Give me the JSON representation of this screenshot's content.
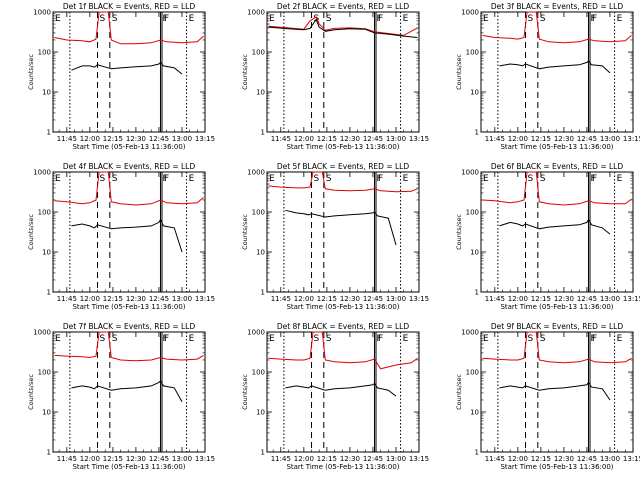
{
  "figure": {
    "type": "line",
    "y_scale": "log",
    "ylim": [
      1,
      1000
    ],
    "xlim": [
      "11:36",
      "13:15"
    ],
    "x_tick_labels": [
      "11:45",
      "12:00",
      "12:15",
      "12:30",
      "12:45",
      "13:00",
      "13:15"
    ],
    "y_tick_labels": [
      "1",
      "10",
      "100",
      "1000"
    ],
    "ylabel": "Counts/sec",
    "xlabel": "Start Time (05-Feb-13 11:36:00)",
    "colors": {
      "events": "#000000",
      "lld": "#e00000",
      "axes": "#000000"
    },
    "markers": {
      "E": {
        "label": "E",
        "style": "dotted",
        "times": [
          "11:47",
          "13:03"
        ]
      },
      "S": {
        "label": "S",
        "style": "dashed",
        "times": [
          "12:05",
          "12:13"
        ]
      },
      "F": {
        "label": "F",
        "style": "solid",
        "times": [
          "12:46",
          "12:47"
        ]
      }
    }
  },
  "chart_data": [
    {
      "title": "Det 1f BLACK = Events, RED = LLD",
      "type": "line",
      "series": [
        {
          "name": "Events",
          "color": "#000000",
          "x": [
            "11:48",
            "11:55",
            "12:00",
            "12:03",
            "12:05",
            "12:14",
            "12:20",
            "12:30",
            "12:40",
            "12:45",
            "12:46",
            "12:48",
            "12:55",
            "13:00"
          ],
          "values": [
            35,
            45,
            45,
            42,
            48,
            38,
            40,
            43,
            45,
            50,
            55,
            45,
            40,
            28
          ]
        },
        {
          "name": "LLD",
          "color": "#e00000",
          "x": [
            "11:37",
            "11:45",
            "11:55",
            "12:00",
            "12:04",
            "12:06",
            "12:12",
            "12:14",
            "12:20",
            "12:30",
            "12:40",
            "12:46",
            "12:50",
            "13:00",
            "13:10",
            "13:14"
          ],
          "values": [
            230,
            200,
            190,
            180,
            210,
            1000,
            1000,
            200,
            160,
            160,
            170,
            200,
            180,
            170,
            180,
            250
          ]
        }
      ]
    },
    {
      "title": "Det 2f BLACK = Events, RED = LLD",
      "type": "line",
      "series": [
        {
          "name": "Events",
          "color": "#000000",
          "x": [
            "11:37",
            "11:50",
            "12:00",
            "12:04",
            "12:08",
            "12:10",
            "12:14",
            "12:20",
            "12:30",
            "12:40",
            "12:46",
            "12:55",
            "13:05",
            "13:14"
          ],
          "values": [
            420,
            380,
            360,
            390,
            650,
            420,
            330,
            360,
            380,
            370,
            300,
            280,
            250,
            230
          ]
        },
        {
          "name": "LLD",
          "color": "#e00000",
          "x": [
            "11:37",
            "11:50",
            "12:00",
            "12:04",
            "12:08",
            "12:10",
            "12:14",
            "12:20",
            "12:30",
            "12:40",
            "12:46",
            "12:55",
            "13:05",
            "13:14"
          ],
          "values": [
            440,
            400,
            370,
            600,
            750,
            500,
            350,
            390,
            400,
            380,
            320,
            290,
            260,
            400
          ]
        }
      ]
    },
    {
      "title": "Det 3f BLACK = Events, RED = LLD",
      "type": "line",
      "series": [
        {
          "name": "Events",
          "color": "#000000",
          "x": [
            "11:48",
            "11:55",
            "12:00",
            "12:03",
            "12:05",
            "12:14",
            "12:20",
            "12:30",
            "12:40",
            "12:45",
            "12:46",
            "12:48",
            "12:55",
            "13:00"
          ],
          "values": [
            45,
            50,
            48,
            45,
            50,
            38,
            42,
            45,
            48,
            55,
            60,
            48,
            45,
            30
          ]
        },
        {
          "name": "LLD",
          "color": "#e00000",
          "x": [
            "11:37",
            "11:45",
            "11:55",
            "12:00",
            "12:04",
            "12:06",
            "12:12",
            "12:14",
            "12:20",
            "12:30",
            "12:40",
            "12:46",
            "12:50",
            "13:00",
            "13:10",
            "13:14"
          ],
          "values": [
            260,
            230,
            220,
            210,
            230,
            1000,
            1000,
            210,
            180,
            170,
            180,
            210,
            190,
            180,
            190,
            260
          ]
        }
      ]
    },
    {
      "title": "Det 4f BLACK = Events, RED = LLD",
      "type": "line",
      "series": [
        {
          "name": "Events",
          "color": "#000000",
          "x": [
            "11:48",
            "11:55",
            "12:00",
            "12:03",
            "12:05",
            "12:14",
            "12:20",
            "12:30",
            "12:40",
            "12:45",
            "12:46",
            "12:48",
            "12:55",
            "13:00"
          ],
          "values": [
            45,
            50,
            45,
            40,
            48,
            38,
            40,
            42,
            45,
            55,
            65,
            45,
            40,
            10
          ]
        },
        {
          "name": "LLD",
          "color": "#e00000",
          "x": [
            "11:37",
            "11:45",
            "11:55",
            "12:00",
            "12:04",
            "12:06",
            "12:12",
            "12:14",
            "12:20",
            "12:30",
            "12:40",
            "12:46",
            "12:50",
            "13:00",
            "13:10",
            "13:14"
          ],
          "values": [
            190,
            180,
            160,
            170,
            200,
            1000,
            1000,
            180,
            160,
            150,
            160,
            200,
            170,
            160,
            170,
            230
          ]
        }
      ]
    },
    {
      "title": "Det 5f BLACK = Events, RED = LLD",
      "type": "line",
      "series": [
        {
          "name": "Events",
          "color": "#000000",
          "x": [
            "11:48",
            "11:55",
            "12:00",
            "12:03",
            "12:05",
            "12:14",
            "12:20",
            "12:30",
            "12:40",
            "12:45",
            "12:46",
            "12:48",
            "12:55",
            "13:00"
          ],
          "values": [
            110,
            95,
            90,
            85,
            90,
            75,
            80,
            85,
            90,
            95,
            100,
            80,
            70,
            15
          ]
        },
        {
          "name": "LLD",
          "color": "#e00000",
          "x": [
            "11:37",
            "11:45",
            "11:55",
            "12:00",
            "12:04",
            "12:06",
            "12:12",
            "12:14",
            "12:20",
            "12:30",
            "12:40",
            "12:46",
            "12:50",
            "13:00",
            "13:10",
            "13:14"
          ],
          "values": [
            450,
            420,
            400,
            400,
            420,
            1000,
            1000,
            380,
            350,
            340,
            350,
            380,
            340,
            320,
            330,
            380
          ]
        }
      ]
    },
    {
      "title": "Det 6f BLACK = Events, RED = LLD",
      "type": "line",
      "series": [
        {
          "name": "Events",
          "color": "#000000",
          "x": [
            "11:48",
            "11:55",
            "12:00",
            "12:03",
            "12:05",
            "12:14",
            "12:20",
            "12:30",
            "12:40",
            "12:45",
            "12:46",
            "12:48",
            "12:55",
            "13:00"
          ],
          "values": [
            45,
            55,
            50,
            45,
            50,
            38,
            42,
            45,
            48,
            55,
            65,
            48,
            40,
            28
          ]
        },
        {
          "name": "LLD",
          "color": "#e00000",
          "x": [
            "11:37",
            "11:45",
            "11:55",
            "12:00",
            "12:04",
            "12:06",
            "12:12",
            "12:14",
            "12:20",
            "12:30",
            "12:40",
            "12:46",
            "12:50",
            "13:00",
            "13:10",
            "13:14"
          ],
          "values": [
            200,
            190,
            170,
            180,
            200,
            1000,
            1000,
            180,
            160,
            150,
            160,
            190,
            170,
            160,
            160,
            210
          ]
        }
      ]
    },
    {
      "title": "Det 7f BLACK = Events, RED = LLD",
      "type": "line",
      "series": [
        {
          "name": "Events",
          "color": "#000000",
          "x": [
            "11:48",
            "11:55",
            "12:00",
            "12:03",
            "12:05",
            "12:14",
            "12:20",
            "12:30",
            "12:40",
            "12:45",
            "12:46",
            "12:48",
            "12:55",
            "13:00"
          ],
          "values": [
            40,
            45,
            42,
            38,
            45,
            35,
            38,
            40,
            45,
            55,
            60,
            45,
            40,
            18
          ]
        },
        {
          "name": "LLD",
          "color": "#e00000",
          "x": [
            "11:37",
            "11:45",
            "11:55",
            "12:00",
            "12:04",
            "12:06",
            "12:12",
            "12:14",
            "12:20",
            "12:30",
            "12:40",
            "12:46",
            "12:50",
            "13:00",
            "13:10",
            "13:14"
          ],
          "values": [
            260,
            250,
            240,
            230,
            250,
            1000,
            1000,
            230,
            200,
            190,
            200,
            230,
            210,
            200,
            210,
            260
          ]
        }
      ]
    },
    {
      "title": "Det 8f BLACK = Events, RED = LLD",
      "type": "line",
      "series": [
        {
          "name": "Events",
          "color": "#000000",
          "x": [
            "11:48",
            "11:55",
            "12:00",
            "12:03",
            "12:05",
            "12:14",
            "12:20",
            "12:30",
            "12:40",
            "12:45",
            "12:46",
            "12:48",
            "12:55",
            "13:00"
          ],
          "values": [
            40,
            45,
            42,
            40,
            45,
            35,
            38,
            40,
            45,
            48,
            52,
            40,
            35,
            25
          ]
        },
        {
          "name": "LLD",
          "color": "#e00000",
          "x": [
            "11:37",
            "11:45",
            "11:55",
            "12:00",
            "12:04",
            "12:06",
            "12:12",
            "12:14",
            "12:20",
            "12:30",
            "12:40",
            "12:46",
            "12:50",
            "13:00",
            "13:10",
            "13:14"
          ],
          "values": [
            220,
            210,
            200,
            200,
            220,
            1000,
            1000,
            200,
            180,
            170,
            180,
            210,
            120,
            150,
            170,
            220
          ]
        }
      ]
    },
    {
      "title": "Det 9f BLACK = Events, RED = LLD",
      "type": "line",
      "series": [
        {
          "name": "Events",
          "color": "#000000",
          "x": [
            "11:48",
            "11:55",
            "12:00",
            "12:03",
            "12:05",
            "12:14",
            "12:20",
            "12:30",
            "12:40",
            "12:45",
            "12:46",
            "12:48",
            "12:55",
            "13:00"
          ],
          "values": [
            40,
            45,
            42,
            40,
            45,
            35,
            38,
            40,
            45,
            48,
            55,
            42,
            38,
            20
          ]
        },
        {
          "name": "LLD",
          "color": "#e00000",
          "x": [
            "11:37",
            "11:45",
            "11:55",
            "12:00",
            "12:04",
            "12:06",
            "12:12",
            "12:14",
            "12:20",
            "12:30",
            "12:40",
            "12:46",
            "12:50",
            "13:00",
            "13:10",
            "13:14"
          ],
          "values": [
            220,
            210,
            200,
            200,
            220,
            1000,
            1000,
            200,
            180,
            170,
            180,
            210,
            180,
            170,
            180,
            220
          ]
        }
      ]
    }
  ]
}
